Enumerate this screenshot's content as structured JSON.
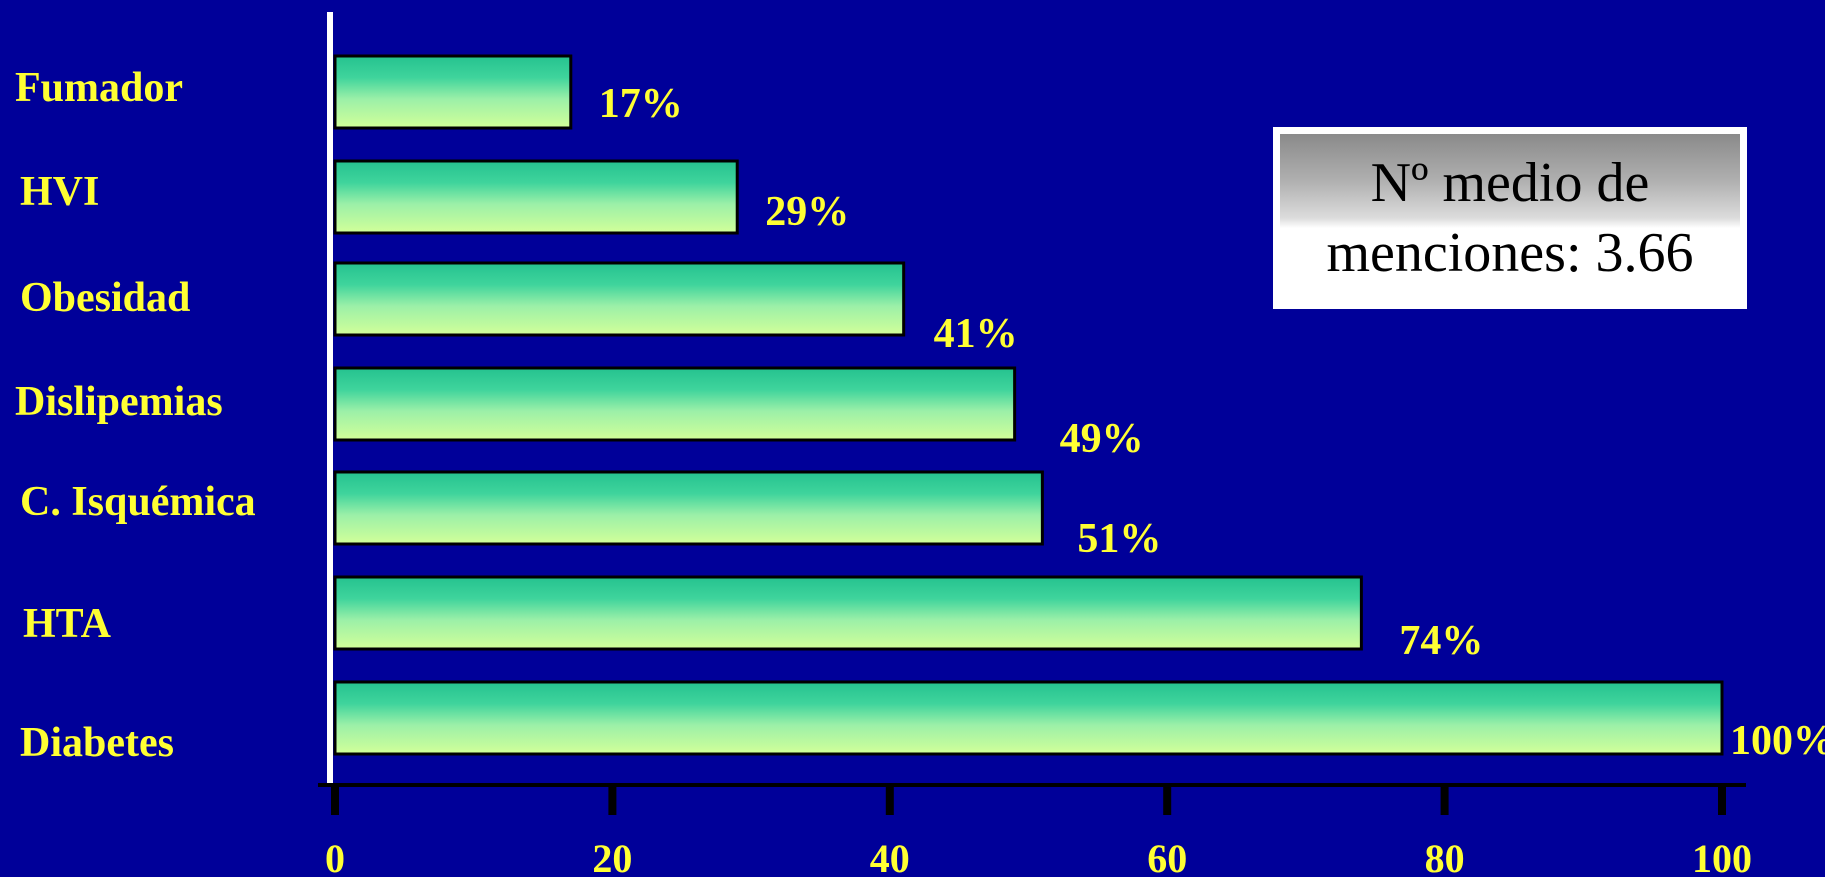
{
  "chart_data": {
    "type": "bar",
    "orientation": "horizontal",
    "categories": [
      "Fumador",
      "HVI",
      "Obesidad",
      "Dislipemias",
      "C. Isquémica",
      "HTA",
      "Diabetes"
    ],
    "values": [
      17,
      29,
      41,
      49,
      51,
      74,
      100
    ],
    "value_labels": [
      "17%",
      "29%",
      "41%",
      "49%",
      "51%",
      "74%",
      "100%"
    ],
    "x_ticks": [
      "0",
      "20",
      "40",
      "60",
      "80",
      "100"
    ],
    "xlim": [
      0,
      100
    ],
    "title": "",
    "xlabel": "",
    "ylabel": "",
    "grid": false,
    "annotation": "Nº medio de menciones: 3.66"
  },
  "colors": {
    "background": "#000099",
    "bar_top": "#2ec99a",
    "bar_bottom": "#ccff99",
    "label_text": "#ffff33",
    "axis": "#000000"
  }
}
